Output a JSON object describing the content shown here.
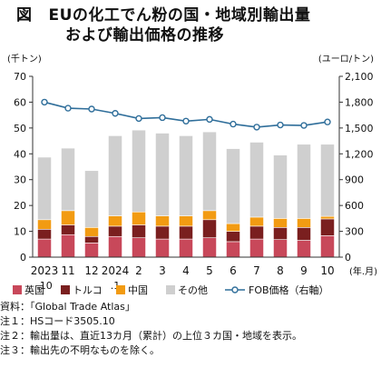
{
  "title": {
    "fig_label": "図",
    "line1": "EUの化工でん粉の国・地域別輸出量",
    "line2": "および輸出価格の推移"
  },
  "chart_data": {
    "type": "bar",
    "stacked": true,
    "categories": [
      "2023\n.10",
      "11",
      "12",
      "2024\n.1",
      "2",
      "3",
      "4",
      "5",
      "6",
      "7",
      "8",
      "9",
      "10"
    ],
    "x_unit_label": "(年.月)",
    "y_left": {
      "unit_label": "(千トン)",
      "min": 0,
      "max": 70,
      "ticks": [
        0,
        10,
        20,
        30,
        40,
        50,
        60,
        70
      ]
    },
    "y_right": {
      "unit_label": "(ユーロ/トン)",
      "min": 0,
      "max": 2100,
      "ticks": [
        "0",
        "300",
        "600",
        "900",
        "1,200",
        "1,500",
        "1,800",
        "2,100"
      ]
    },
    "series": [
      {
        "name": "英国",
        "color": "#c8485a",
        "values": [
          7,
          8.7,
          5.5,
          8,
          7.5,
          7,
          7,
          7.5,
          6,
          7,
          6.8,
          6.5,
          8.3
        ]
      },
      {
        "name": "トルコ",
        "color": "#7a1f1f",
        "values": [
          3.8,
          3.8,
          2.5,
          4,
          5,
          5,
          5,
          7,
          4,
          5,
          4.7,
          5,
          6.5
        ]
      },
      {
        "name": "中国",
        "color": "#f29b12",
        "values": [
          3.7,
          5.5,
          3.5,
          4,
          5,
          4,
          4,
          3.5,
          3,
          3.5,
          3.5,
          3.5,
          1
        ]
      },
      {
        "name": "その他",
        "color": "#cfcfcf",
        "values": [
          24.2,
          24.2,
          22,
          31,
          31.7,
          32,
          31,
          30.5,
          29,
          29,
          24.5,
          28.7,
          27.9
        ]
      }
    ],
    "line_series": {
      "name": "FOB価格（右軸）",
      "color": "#2f6e9a",
      "axis": "right",
      "values": [
        1800,
        1730,
        1720,
        1670,
        1610,
        1620,
        1580,
        1600,
        1545,
        1510,
        1535,
        1530,
        1570
      ]
    },
    "legend_position": "bottom",
    "grid": false
  },
  "notes": [
    "資料：「Global Trade Atlas」",
    "注１：HSコード3505.10",
    "注２：輸出量は、直近13カ月（累計）の上位３カ国・地域を表示。",
    "注３：輸出先の不明なものを除く。"
  ]
}
